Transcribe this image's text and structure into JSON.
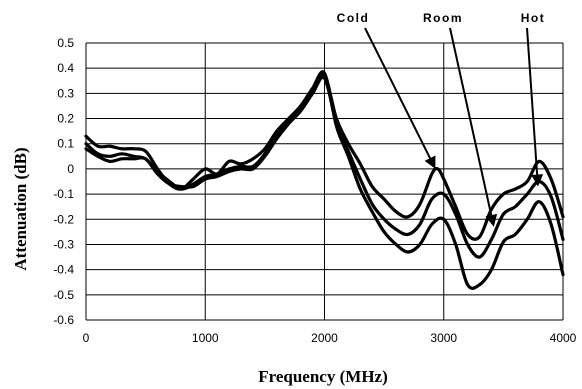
{
  "chart_data": {
    "type": "line",
    "title": "",
    "xlabel": "Frequency (MHz)",
    "ylabel": "Attenuation (dB)",
    "xlim": [
      0,
      4000
    ],
    "ylim": [
      -0.6,
      0.5
    ],
    "xticks": [
      0,
      1000,
      2000,
      3000,
      4000
    ],
    "xtick_labels": [
      "0",
      "1000",
      "2000",
      "3000",
      "4000"
    ],
    "yticks": [
      0.5,
      0.4,
      0.3,
      0.2,
      0.1,
      0,
      -0.1,
      -0.2,
      -0.3,
      -0.4,
      -0.5,
      -0.6
    ],
    "ytick_labels": [
      "0.5",
      "0.4",
      "0.3",
      "0.2",
      "0.1",
      "0",
      "-0.1",
      "-0.2",
      "-0.3",
      "-0.4",
      "-0.5",
      "-0.6"
    ],
    "grid": true,
    "line_color": "#000000",
    "series": [
      {
        "name": "Cold",
        "x": [
          0,
          100,
          200,
          300,
          400,
          500,
          600,
          700,
          800,
          900,
          1000,
          1100,
          1200,
          1300,
          1400,
          1500,
          1600,
          1700,
          1800,
          1900,
          2000,
          2100,
          2200,
          2300,
          2400,
          2500,
          2600,
          2700,
          2800,
          2900,
          2950,
          3000,
          3100,
          3200,
          3300,
          3400,
          3500,
          3600,
          3700,
          3800,
          3900,
          4000
        ],
        "y": [
          0.08,
          0.05,
          0.03,
          0.04,
          0.04,
          0.04,
          -0.02,
          -0.06,
          -0.07,
          -0.07,
          -0.04,
          -0.03,
          -0.01,
          0.0,
          0.0,
          0.05,
          0.12,
          0.18,
          0.23,
          0.3,
          0.37,
          0.2,
          0.1,
          0.02,
          -0.07,
          -0.12,
          -0.17,
          -0.19,
          -0.14,
          -0.02,
          0.0,
          -0.04,
          -0.15,
          -0.26,
          -0.27,
          -0.16,
          -0.1,
          -0.08,
          -0.05,
          0.03,
          -0.04,
          -0.19
        ]
      },
      {
        "name": "Room",
        "x": [
          0,
          100,
          200,
          300,
          400,
          500,
          600,
          700,
          800,
          900,
          1000,
          1100,
          1200,
          1300,
          1400,
          1500,
          1600,
          1700,
          1800,
          1900,
          2000,
          2100,
          2200,
          2300,
          2400,
          2500,
          2600,
          2700,
          2800,
          2900,
          3000,
          3100,
          3200,
          3300,
          3400,
          3500,
          3600,
          3700,
          3800,
          3900,
          4000
        ],
        "y": [
          0.1,
          0.06,
          0.05,
          0.06,
          0.05,
          0.04,
          -0.01,
          -0.05,
          -0.08,
          -0.06,
          -0.03,
          -0.02,
          0.0,
          0.01,
          0.01,
          0.06,
          0.14,
          0.19,
          0.24,
          0.3,
          0.36,
          0.18,
          0.07,
          -0.04,
          -0.14,
          -0.2,
          -0.24,
          -0.26,
          -0.22,
          -0.12,
          -0.1,
          -0.18,
          -0.3,
          -0.35,
          -0.28,
          -0.18,
          -0.15,
          -0.1,
          -0.05,
          -0.11,
          -0.28
        ]
      },
      {
        "name": "Hot",
        "x": [
          0,
          100,
          200,
          300,
          400,
          500,
          600,
          700,
          800,
          900,
          1000,
          1100,
          1200,
          1300,
          1400,
          1500,
          1600,
          1700,
          1800,
          1900,
          2000,
          2100,
          2200,
          2300,
          2400,
          2500,
          2600,
          2700,
          2800,
          2900,
          3000,
          3100,
          3200,
          3300,
          3400,
          3500,
          3600,
          3700,
          3800,
          3900,
          4000
        ],
        "y": [
          0.13,
          0.09,
          0.09,
          0.08,
          0.08,
          0.07,
          0.0,
          -0.06,
          -0.08,
          -0.04,
          0.0,
          -0.02,
          0.03,
          0.02,
          0.04,
          0.08,
          0.15,
          0.2,
          0.25,
          0.32,
          0.38,
          0.17,
          0.05,
          -0.08,
          -0.17,
          -0.25,
          -0.3,
          -0.33,
          -0.3,
          -0.22,
          -0.2,
          -0.3,
          -0.46,
          -0.46,
          -0.4,
          -0.29,
          -0.26,
          -0.2,
          -0.13,
          -0.22,
          -0.42
        ]
      }
    ],
    "annotations": [
      {
        "text": "Cold",
        "points_to": [
          2930,
          0.0
        ]
      },
      {
        "text": "Room",
        "points_to": [
          3420,
          -0.23
        ]
      },
      {
        "text": "Hot",
        "points_to": [
          3790,
          -0.07
        ]
      }
    ]
  }
}
